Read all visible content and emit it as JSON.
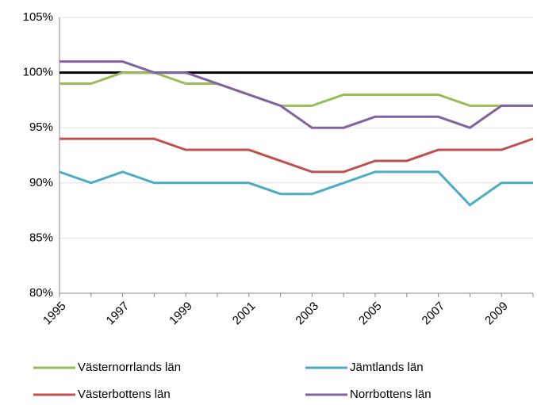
{
  "chart_data": {
    "type": "line",
    "categories": [
      "1995",
      null,
      "1997",
      null,
      "1999",
      null,
      "2001",
      null,
      "2003",
      null,
      "2005",
      null,
      "2007",
      null,
      "2009",
      null
    ],
    "series": [
      {
        "name": "Västernorrlands län",
        "color": "#9bbb59",
        "values": [
          99,
          99,
          100,
          100,
          99,
          99,
          98,
          97,
          97,
          98,
          98,
          98,
          98,
          97,
          97,
          97
        ]
      },
      {
        "name": "Jämtlands län",
        "color": "#4bacc6",
        "values": [
          91,
          90,
          91,
          90,
          90,
          90,
          90,
          89,
          89,
          90,
          91,
          91,
          91,
          88,
          90,
          90
        ]
      },
      {
        "name": "Västerbottens län",
        "color": "#c0504d",
        "values": [
          94,
          94,
          94,
          94,
          93,
          93,
          93,
          92,
          91,
          91,
          92,
          92,
          93,
          93,
          93,
          94
        ]
      },
      {
        "name": "Norrbottens län",
        "color": "#8064a2",
        "values": [
          101,
          101,
          101,
          100,
          100,
          99,
          98,
          97,
          95,
          95,
          96,
          96,
          96,
          95,
          97,
          97
        ]
      }
    ],
    "reference_line": 100,
    "ylim": [
      80,
      105
    ],
    "yticks": [
      {
        "value": 80,
        "label": "80%"
      },
      {
        "value": 85,
        "label": "85%"
      },
      {
        "value": 90,
        "label": "90%"
      },
      {
        "value": 95,
        "label": "95%"
      },
      {
        "value": 100,
        "label": "100%"
      },
      {
        "value": 105,
        "label": "105%"
      }
    ],
    "grid": true,
    "legend": "bottom"
  }
}
